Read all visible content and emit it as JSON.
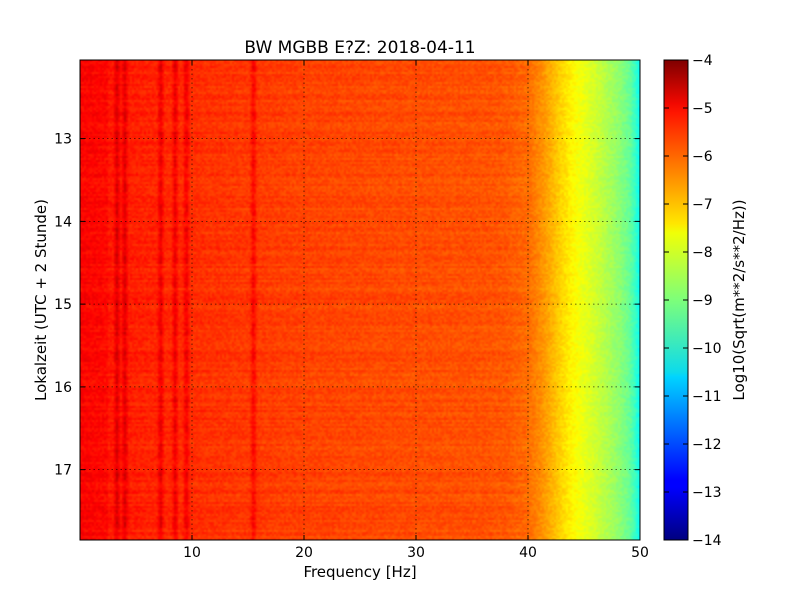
{
  "chart_data": {
    "type": "heatmap",
    "title": "BW MGBB E?Z: 2018-04-11",
    "xlabel": "Frequency [Hz]",
    "ylabel": "Lokalzeit (UTC + 2 Stunde)",
    "xlim": [
      0,
      50
    ],
    "ylim": [
      12.05,
      17.85
    ],
    "y_inverted": true,
    "x_ticks": [
      "10",
      "20",
      "30",
      "40",
      "50"
    ],
    "y_ticks": [
      "13",
      "14",
      "15",
      "16",
      "17"
    ],
    "grid": true,
    "colormap": "jet",
    "colorbar": {
      "label": "Log10(Sqrt(m**2/s**2/Hz))",
      "range": [
        -14,
        -4
      ],
      "ticks": [
        "−4",
        "−5",
        "−6",
        "−7",
        "−8",
        "−9",
        "−10",
        "−11",
        "−12",
        "−13",
        "−14"
      ]
    },
    "spectral_profile": {
      "frequency_hz": [
        0,
        10,
        20,
        30,
        36,
        38,
        40,
        41,
        42,
        43,
        44,
        45,
        46,
        47,
        48,
        49,
        49.5,
        50
      ],
      "log10_amplitude": [
        -5.4,
        -5.7,
        -5.9,
        -6.0,
        -6.05,
        -6.1,
        -6.3,
        -6.6,
        -6.95,
        -7.35,
        -7.7,
        -7.95,
        -8.2,
        -8.5,
        -8.8,
        -9.2,
        -9.6,
        -10.2
      ]
    },
    "spectral_lines_hz": [
      3.3,
      4.0,
      7.2,
      8.5,
      9.5,
      15.5
    ]
  }
}
